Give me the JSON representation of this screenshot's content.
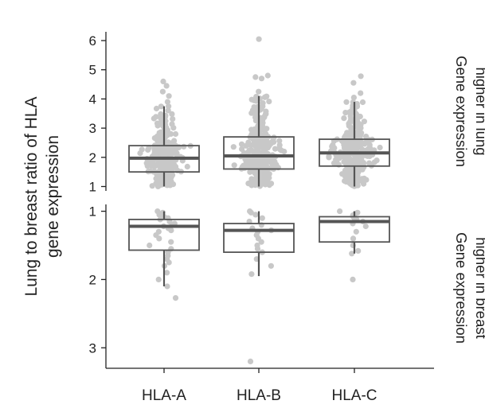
{
  "chart_data": {
    "type": "box",
    "y_axis_label_lines": [
      "Lung to breast ratio of HLA",
      "gene expression"
    ],
    "categories": [
      "HLA-A",
      "HLA-B",
      "HLA-C"
    ],
    "colors": {
      "point": "#c8c8c8",
      "box": "#555555",
      "median": "#555555",
      "axis": "#222222"
    },
    "panels": [
      {
        "id": "lung-higher",
        "side_label_lines": [
          "Gene expression",
          "higher in lung"
        ],
        "yticks": [
          1,
          2,
          3,
          4,
          5,
          6
        ],
        "ylim": [
          0.85,
          6.3
        ],
        "boxes": [
          {
            "category": "HLA-A",
            "whisker_low": 1.0,
            "q1": 1.5,
            "median": 1.97,
            "q3": 2.4,
            "whisker_high": 3.75,
            "n_points": 280,
            "outliers": [
              3.9,
              4.1,
              4.25,
              4.45,
              4.6
            ]
          },
          {
            "category": "HLA-B",
            "whisker_low": 1.0,
            "q1": 1.6,
            "median": 2.05,
            "q3": 2.7,
            "whisker_high": 4.1,
            "n_points": 320,
            "outliers": [
              4.25,
              4.7,
              4.75,
              4.8,
              6.05
            ]
          },
          {
            "category": "HLA-C",
            "whisker_low": 1.0,
            "q1": 1.7,
            "median": 2.15,
            "q3": 2.62,
            "whisker_high": 3.9,
            "n_points": 300,
            "outliers": [
              4.05,
              4.2,
              4.55,
              4.78
            ]
          }
        ]
      },
      {
        "id": "breast-higher",
        "side_label_lines": [
          "Gene expression",
          "higher in breast"
        ],
        "reversed": true,
        "yticks": [
          1,
          2,
          3
        ],
        "ylim": [
          0.9,
          3.3
        ],
        "boxes": [
          {
            "category": "HLA-A",
            "whisker_low": 1.0,
            "q1": 1.12,
            "median": 1.22,
            "q3": 1.57,
            "whisker_high": 2.1,
            "points": [
              1.0,
              1.02,
              1.05,
              1.08,
              1.1,
              1.12,
              1.15,
              1.18,
              1.2,
              1.22,
              1.25,
              1.28,
              1.3,
              1.35,
              1.4,
              1.45,
              1.5,
              1.55,
              1.6,
              1.65,
              1.7,
              1.75,
              1.8,
              1.9,
              2.0,
              2.1,
              2.27
            ]
          },
          {
            "category": "HLA-B",
            "whisker_low": 1.0,
            "q1": 1.18,
            "median": 1.28,
            "q3": 1.6,
            "whisker_high": 1.95,
            "points": [
              1.0,
              1.02,
              1.05,
              1.1,
              1.15,
              1.2,
              1.25,
              1.28,
              1.3,
              1.35,
              1.4,
              1.45,
              1.5,
              1.55,
              1.6,
              1.7,
              1.8,
              1.92,
              3.2
            ]
          },
          {
            "category": "HLA-C",
            "whisker_low": 1.0,
            "q1": 1.08,
            "median": 1.15,
            "q3": 1.45,
            "whisker_high": 1.62,
            "points": [
              1.0,
              1.02,
              1.04,
              1.06,
              1.08,
              1.1,
              1.12,
              1.15,
              1.18,
              1.22,
              1.3,
              1.4,
              1.5,
              1.58,
              1.62,
              2.0
            ]
          }
        ]
      }
    ]
  }
}
